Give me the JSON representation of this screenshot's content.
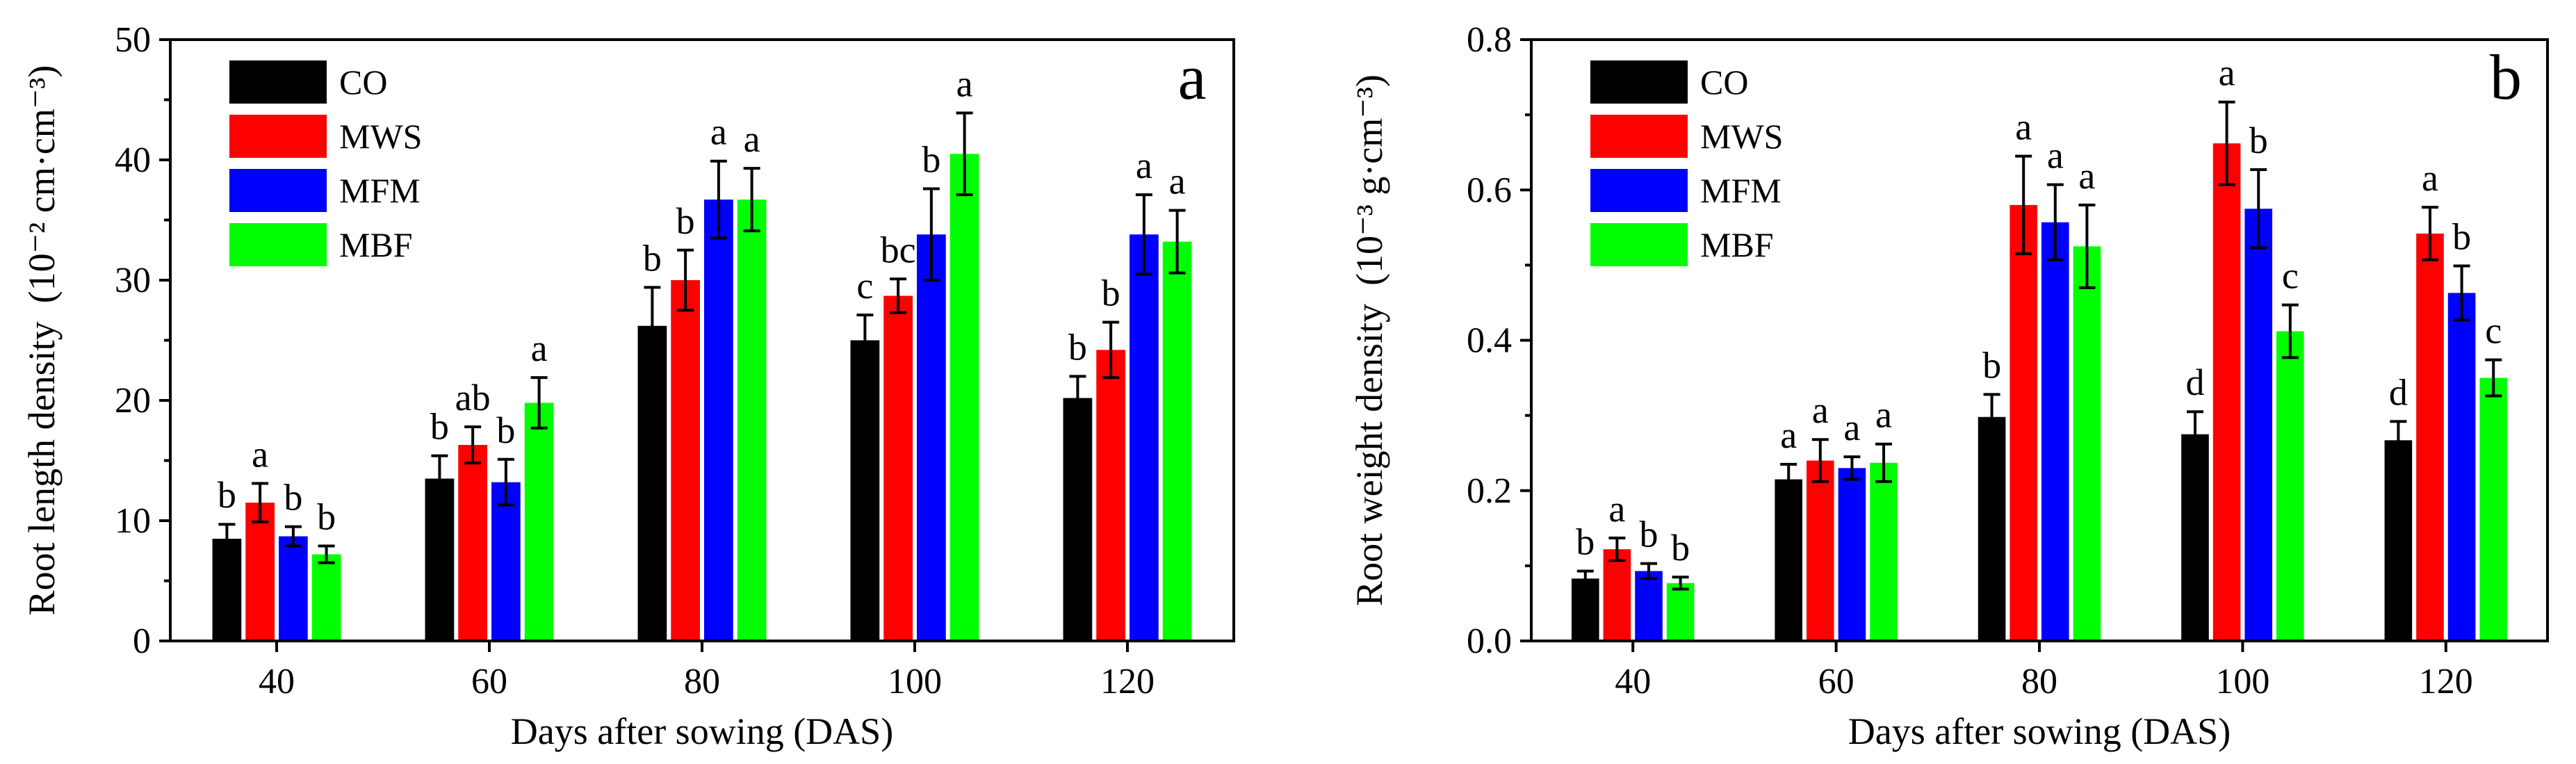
{
  "series_colors": {
    "CO": "#000000",
    "MWS": "#ff0000",
    "MFM": "#0000ff",
    "MBF": "#00ff00"
  },
  "chart_data": [
    {
      "type": "bar",
      "panel_label": "a",
      "categories": [
        "40",
        "60",
        "80",
        "100",
        "120"
      ],
      "xlabel": "Days after sowing (DAS)",
      "ylabel": "Root length density",
      "yunit": "(10⁻² cm·cm⁻³)",
      "ylim": [
        0,
        50
      ],
      "yticks": [
        0,
        10,
        20,
        30,
        40,
        50
      ],
      "legend_position": "top-left",
      "series": [
        {
          "name": "CO",
          "values": [
            8.5,
            13.5,
            26.2,
            25.0,
            20.2
          ],
          "errors": [
            1.2,
            1.9,
            3.2,
            2.1,
            1.8
          ],
          "letters": [
            "b",
            "b",
            "b",
            "c",
            "b"
          ]
        },
        {
          "name": "MWS",
          "values": [
            11.5,
            16.3,
            30.0,
            28.7,
            24.2
          ],
          "errors": [
            1.6,
            1.5,
            2.5,
            1.4,
            2.3
          ],
          "letters": [
            "a",
            "ab",
            "b",
            "bc",
            "b"
          ]
        },
        {
          "name": "MFM",
          "values": [
            8.7,
            13.2,
            36.7,
            33.8,
            33.8
          ],
          "errors": [
            0.8,
            1.9,
            3.2,
            3.8,
            3.3
          ],
          "letters": [
            "b",
            "b",
            "a",
            "b",
            "a"
          ]
        },
        {
          "name": "MBF",
          "values": [
            7.2,
            19.8,
            36.7,
            40.5,
            33.2
          ],
          "errors": [
            0.7,
            2.1,
            2.6,
            3.4,
            2.6
          ],
          "letters": [
            "b",
            "a",
            "a",
            "a",
            "a"
          ]
        }
      ]
    },
    {
      "type": "bar",
      "panel_label": "b",
      "categories": [
        "40",
        "60",
        "80",
        "100",
        "120"
      ],
      "xlabel": "Days after sowing (DAS)",
      "ylabel": "Root weight density",
      "yunit": "(10⁻³ g·cm⁻³)",
      "ylim": [
        0,
        0.8
      ],
      "yticks": [
        "0.0",
        "0.2",
        "0.4",
        "0.6",
        "0.8"
      ],
      "legend_position": "top-left",
      "series": [
        {
          "name": "CO",
          "values": [
            0.083,
            0.215,
            0.298,
            0.275,
            0.267
          ],
          "errors": [
            0.01,
            0.02,
            0.03,
            0.03,
            0.025
          ],
          "letters": [
            "b",
            "a",
            "b",
            "d",
            "d"
          ]
        },
        {
          "name": "MWS",
          "values": [
            0.122,
            0.24,
            0.58,
            0.662,
            0.542
          ],
          "errors": [
            0.015,
            0.028,
            0.065,
            0.055,
            0.035
          ],
          "letters": [
            "a",
            "a",
            "a",
            "a",
            "a"
          ]
        },
        {
          "name": "MFM",
          "values": [
            0.093,
            0.23,
            0.557,
            0.575,
            0.463
          ],
          "errors": [
            0.01,
            0.015,
            0.05,
            0.052,
            0.036
          ],
          "letters": [
            "b",
            "a",
            "a",
            "b",
            "b"
          ]
        },
        {
          "name": "MBF",
          "values": [
            0.077,
            0.237,
            0.525,
            0.412,
            0.35
          ],
          "errors": [
            0.008,
            0.025,
            0.055,
            0.035,
            0.024
          ],
          "letters": [
            "b",
            "a",
            "a",
            "c",
            "c"
          ]
        }
      ]
    }
  ]
}
